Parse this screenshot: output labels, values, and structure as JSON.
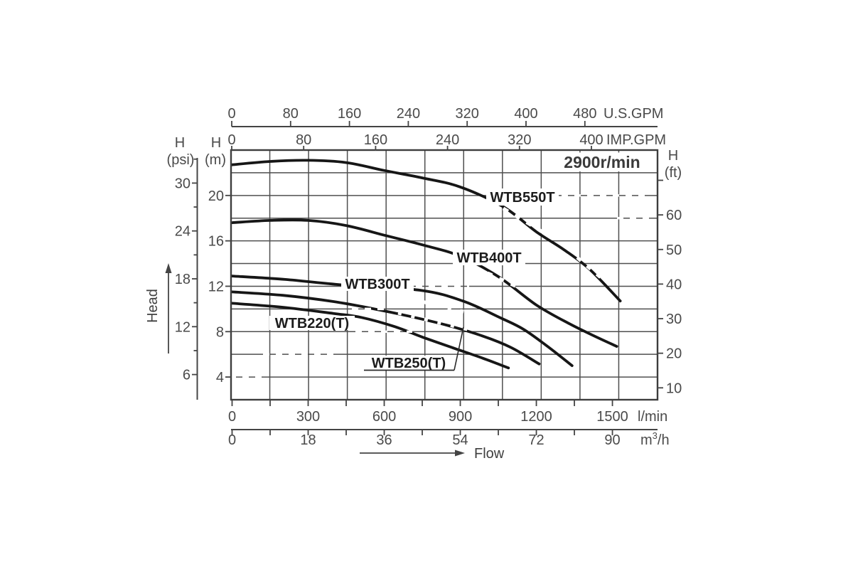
{
  "chart_data": {
    "type": "line",
    "speed_label": "2900r/min",
    "axis_titles": {
      "x": "Flow",
      "y": "Head"
    },
    "x_axes": [
      {
        "id": "us-gpm",
        "position": "top",
        "unit": "U.S.GPM",
        "ticks": [
          0,
          80,
          160,
          240,
          320,
          400,
          480
        ]
      },
      {
        "id": "imp-gpm",
        "position": "top",
        "unit": "IMP.GPM",
        "ticks": [
          0,
          80,
          160,
          240,
          320,
          400
        ]
      },
      {
        "id": "l-min",
        "position": "bottom",
        "unit": "l/min",
        "ticks": [
          0,
          300,
          600,
          900,
          1200,
          1500
        ]
      },
      {
        "id": "m3-h",
        "position": "bottom",
        "unit": "m³/h",
        "ticks": [
          0,
          18,
          36,
          54,
          72,
          90
        ]
      }
    ],
    "y_axes": [
      {
        "id": "head-psi",
        "position": "left",
        "name": "H",
        "unit": "(psi)",
        "ticks": [
          30,
          24,
          18,
          12,
          6
        ]
      },
      {
        "id": "head-m",
        "position": "left",
        "name": "H",
        "unit": "(m)",
        "ticks": [
          20,
          16,
          12,
          8,
          4
        ]
      },
      {
        "id": "head-ft",
        "position": "right",
        "name": "H",
        "unit": "(ft)",
        "ticks": [
          60,
          50,
          40,
          30,
          20,
          10
        ]
      }
    ],
    "x_range_l_min": [
      0,
      1650
    ],
    "y_range_m": [
      2,
      24
    ],
    "grid": true,
    "series": [
      {
        "name": "WTB550T",
        "points": [
          [
            0,
            22.7
          ],
          [
            150,
            23.0
          ],
          [
            300,
            23.1
          ],
          [
            450,
            22.9
          ],
          [
            600,
            22.2
          ],
          [
            750,
            21.55
          ],
          [
            900,
            20.75
          ],
          [
            1070,
            19.0
          ],
          [
            1200,
            16.8
          ],
          [
            1310,
            15.2
          ],
          [
            1410,
            13.5
          ],
          [
            1531,
            10.7
          ]
        ]
      },
      {
        "name": "WTB400T",
        "points": [
          [
            0,
            17.6
          ],
          [
            150,
            17.8
          ],
          [
            300,
            17.8
          ],
          [
            450,
            17.35
          ],
          [
            600,
            16.5
          ],
          [
            750,
            15.65
          ],
          [
            900,
            14.65
          ],
          [
            1050,
            12.85
          ],
          [
            1200,
            10.35
          ],
          [
            1330,
            8.7
          ],
          [
            1430,
            7.6
          ],
          [
            1517,
            6.7
          ]
        ]
      },
      {
        "name": "WTB300T",
        "points": [
          [
            0,
            12.9
          ],
          [
            210,
            12.6
          ],
          [
            420,
            12.15
          ],
          [
            740,
            11.65
          ],
          [
            910,
            10.7
          ],
          [
            1060,
            9.2
          ],
          [
            1150,
            8.2
          ],
          [
            1250,
            6.6
          ],
          [
            1341,
            5.0
          ]
        ]
      },
      {
        "name": "WTB220(T)",
        "points": [
          [
            0,
            10.5
          ],
          [
            200,
            10.15
          ],
          [
            400,
            9.6
          ],
          [
            510,
            9.25
          ],
          [
            640,
            8.45
          ],
          [
            753,
            7.5
          ],
          [
            880,
            6.5
          ],
          [
            990,
            5.65
          ],
          [
            1090,
            4.8
          ]
        ]
      },
      {
        "name": "WTB250(T)",
        "points": [
          [
            0,
            11.5
          ],
          [
            200,
            11.2
          ],
          [
            400,
            10.65
          ],
          [
            550,
            10.05
          ],
          [
            700,
            9.35
          ],
          [
            850,
            8.55
          ],
          [
            990,
            7.6
          ],
          [
            1100,
            6.6
          ],
          [
            1211,
            5.15
          ]
        ]
      }
    ]
  }
}
